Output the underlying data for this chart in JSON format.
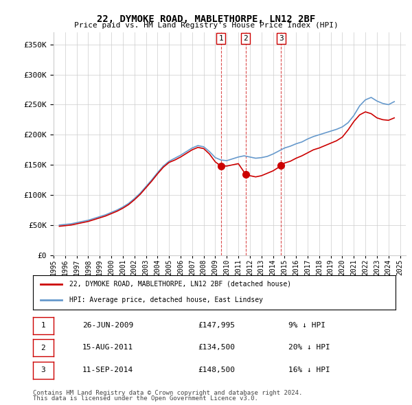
{
  "title": "22, DYMOKE ROAD, MABLETHORPE, LN12 2BF",
  "subtitle": "Price paid vs. HM Land Registry's House Price Index (HPI)",
  "legend_line1": "22, DYMOKE ROAD, MABLETHORPE, LN12 2BF (detached house)",
  "legend_line2": "HPI: Average price, detached house, East Lindsey",
  "footer1": "Contains HM Land Registry data © Crown copyright and database right 2024.",
  "footer2": "This data is licensed under the Open Government Licence v3.0.",
  "transactions": [
    {
      "num": 1,
      "date": "26-JUN-2009",
      "price": "£147,995",
      "pct": "9% ↓ HPI",
      "x": 2009.49
    },
    {
      "num": 2,
      "date": "15-AUG-2011",
      "price": "£134,500",
      "pct": "20% ↓ HPI",
      "x": 2011.62
    },
    {
      "num": 3,
      "date": "11-SEP-2014",
      "price": "£148,500",
      "pct": "16% ↓ HPI",
      "x": 2014.7
    }
  ],
  "transaction_values": [
    147995,
    134500,
    148500
  ],
  "ylim": [
    0,
    370000
  ],
  "yticks": [
    0,
    50000,
    100000,
    150000,
    200000,
    250000,
    300000,
    350000
  ],
  "background_color": "#ffffff",
  "plot_bg": "#ffffff",
  "grid_color": "#cccccc",
  "red_color": "#cc0000",
  "blue_color": "#6699cc",
  "vline_color": "#cc0000",
  "marker_color": "#cc0000"
}
